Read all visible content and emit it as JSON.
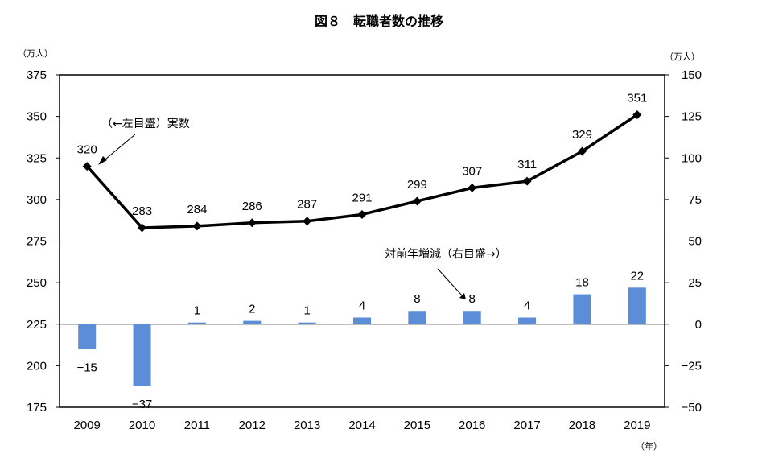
{
  "title": "図８　転職者数の推移",
  "chart_data": {
    "type": "bar+line",
    "title": "図８　転職者数の推移",
    "left_axis_unit": "（万人）",
    "right_axis_unit": "（万人）",
    "x_axis_unit": "（年）",
    "categories": [
      "2009",
      "2010",
      "2011",
      "2012",
      "2013",
      "2014",
      "2015",
      "2016",
      "2017",
      "2018",
      "2019"
    ],
    "line_series": {
      "name": "（←左目盛）実数",
      "axis": "left",
      "values": [
        320,
        283,
        284,
        286,
        287,
        291,
        299,
        307,
        311,
        329,
        351
      ],
      "color": "#000000"
    },
    "bar_series": {
      "name": "対前年増減（右目盛→）",
      "axis": "right",
      "values": [
        -15,
        -37,
        1,
        2,
        1,
        4,
        8,
        8,
        4,
        18,
        22
      ],
      "labels": [
        "−15",
        "−37",
        "1",
        "2",
        "1",
        "4",
        "8",
        "8",
        "4",
        "18",
        "22"
      ],
      "color": "#5b8ed6"
    },
    "left_ylim": [
      175,
      375
    ],
    "left_ticks": [
      375,
      350,
      325,
      300,
      275,
      250,
      225,
      200,
      175
    ],
    "right_ylim": [
      -50,
      150
    ],
    "right_ticks": [
      "150",
      "125",
      "100",
      "75",
      "50",
      "25",
      "0",
      "−25",
      "−50"
    ],
    "grid": false
  }
}
